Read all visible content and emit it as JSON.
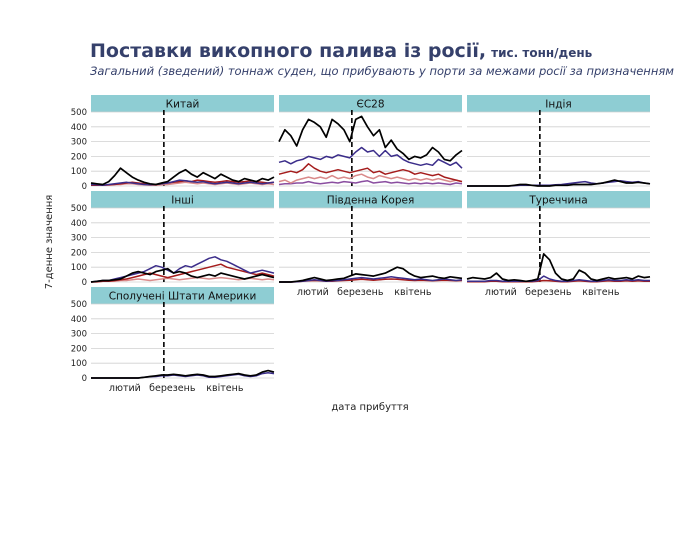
{
  "header": {
    "title": "Поставки викопного палива із росії,",
    "unit": "тис. тонн/день",
    "subtitle": "Загальний (зведений) тоннаж суден, що прибувають у порти за межами росії за призначенням"
  },
  "axes": {
    "ylabel": "7-денне значення",
    "xlabel": "дата прибуття"
  },
  "colors": {
    "strip_bg": "#8ecdd3",
    "grid": "#d0d0d0",
    "dash": "#000000",
    "series": [
      "#000000",
      "#3b2d8a",
      "#a51c1c",
      "#d98a8a",
      "#8a4ea0"
    ]
  },
  "chart_data": {
    "type": "line",
    "x_ticks": [
      "лютий",
      "березень",
      "квітень"
    ],
    "x_tick_dates": [
      "2022-02-01",
      "2022-03-01",
      "2022-04-01"
    ],
    "x_range": [
      "2022-01-12",
      "2022-04-30"
    ],
    "event_line_date": "2022-02-24",
    "ylim": [
      0,
      500
    ],
    "y_ticks": [
      0,
      100,
      200,
      300,
      400,
      500
    ],
    "panels": [
      {
        "name": "Китай",
        "series": [
          {
            "values": [
              20,
              15,
              10,
              30,
              70,
              120,
              90,
              60,
              40,
              25,
              15,
              10,
              20,
              30,
              60,
              90,
              110,
              80,
              60,
              90,
              70,
              50,
              80,
              60,
              40,
              30,
              50,
              40,
              30,
              50,
              40,
              60
            ]
          },
          {
            "values": [
              10,
              8,
              5,
              10,
              15,
              20,
              25,
              20,
              15,
              10,
              8,
              10,
              15,
              20,
              30,
              40,
              35,
              30,
              25,
              30,
              20,
              15,
              20,
              25,
              20,
              15,
              20,
              25,
              20,
              15,
              20,
              25
            ]
          },
          {
            "values": [
              5,
              5,
              5,
              8,
              10,
              15,
              20,
              25,
              20,
              15,
              10,
              10,
              15,
              20,
              25,
              30,
              35,
              30,
              40,
              35,
              30,
              25,
              30,
              35,
              30,
              25,
              30,
              35,
              30,
              25,
              20,
              25
            ]
          },
          {
            "values": [
              5,
              5,
              5,
              5,
              10,
              10,
              15,
              15,
              10,
              8,
              5,
              5,
              8,
              10,
              15,
              20,
              25,
              20,
              15,
              20,
              15,
              10,
              15,
              20,
              15,
              10,
              15,
              20,
              15,
              10,
              15,
              10
            ]
          }
        ]
      },
      {
        "name": "ЄС28",
        "series": [
          {
            "values": [
              300,
              380,
              340,
              270,
              380,
              450,
              430,
              400,
              330,
              450,
              420,
              380,
              300,
              450,
              470,
              400,
              340,
              380,
              260,
              310,
              250,
              220,
              180,
              200,
              190,
              210,
              260,
              230,
              180,
              170,
              210,
              240
            ]
          },
          {
            "values": [
              160,
              170,
              150,
              170,
              180,
              200,
              190,
              180,
              200,
              190,
              210,
              200,
              190,
              230,
              260,
              230,
              240,
              200,
              240,
              200,
              210,
              180,
              160,
              150,
              140,
              150,
              140,
              180,
              160,
              140,
              160,
              120
            ]
          },
          {
            "values": [
              80,
              90,
              100,
              90,
              110,
              150,
              120,
              100,
              90,
              100,
              110,
              100,
              90,
              100,
              110,
              120,
              90,
              100,
              80,
              90,
              100,
              110,
              100,
              80,
              90,
              80,
              70,
              80,
              60,
              50,
              40,
              30
            ]
          },
          {
            "values": [
              30,
              40,
              20,
              40,
              50,
              60,
              50,
              60,
              50,
              70,
              50,
              60,
              50,
              70,
              80,
              60,
              50,
              70,
              60,
              50,
              60,
              50,
              40,
              50,
              40,
              50,
              40,
              50,
              40,
              30,
              40,
              30
            ]
          },
          {
            "values": [
              10,
              15,
              15,
              20,
              20,
              30,
              20,
              15,
              20,
              25,
              20,
              30,
              25,
              20,
              30,
              35,
              20,
              25,
              30,
              20,
              25,
              20,
              15,
              20,
              15,
              20,
              15,
              20,
              15,
              10,
              20,
              15
            ]
          }
        ]
      },
      {
        "name": "Індія",
        "series": [
          {
            "values": [
              0,
              0,
              0,
              0,
              0,
              0,
              0,
              0,
              5,
              10,
              10,
              5,
              0,
              0,
              0,
              5,
              5,
              5,
              10,
              10,
              10,
              10,
              15,
              20,
              30,
              40,
              30,
              20,
              20,
              25,
              20,
              15
            ]
          },
          {
            "values": [
              0,
              0,
              0,
              0,
              0,
              0,
              0,
              0,
              2,
              5,
              5,
              5,
              5,
              5,
              5,
              8,
              10,
              15,
              20,
              25,
              30,
              20,
              15,
              20,
              25,
              30,
              35,
              30,
              25,
              30,
              20,
              15
            ]
          }
        ]
      },
      {
        "name": "Інші",
        "series": [
          {
            "values": [
              0,
              5,
              10,
              10,
              15,
              20,
              40,
              60,
              70,
              60,
              50,
              70,
              80,
              90,
              60,
              70,
              60,
              40,
              30,
              40,
              50,
              40,
              60,
              50,
              40,
              30,
              20,
              30,
              40,
              50,
              40,
              30
            ]
          },
          {
            "values": [
              0,
              5,
              10,
              10,
              20,
              30,
              40,
              50,
              60,
              70,
              90,
              110,
              100,
              80,
              60,
              90,
              110,
              100,
              120,
              140,
              160,
              170,
              150,
              140,
              120,
              100,
              80,
              60,
              70,
              80,
              70,
              60
            ]
          },
          {
            "values": [
              0,
              2,
              5,
              5,
              10,
              15,
              20,
              30,
              40,
              50,
              60,
              50,
              40,
              30,
              40,
              50,
              60,
              70,
              80,
              90,
              100,
              110,
              120,
              100,
              90,
              80,
              70,
              60,
              50,
              60,
              50,
              40
            ]
          },
          {
            "values": [
              0,
              0,
              5,
              5,
              5,
              10,
              10,
              15,
              20,
              15,
              10,
              15,
              20,
              25,
              20,
              15,
              20,
              25,
              30,
              25,
              20,
              25,
              30,
              25,
              20,
              15,
              20,
              25,
              20,
              15,
              20,
              15
            ]
          }
        ]
      },
      {
        "name": "Південна Корея",
        "series": [
          {
            "values": [
              0,
              0,
              0,
              5,
              10,
              20,
              30,
              20,
              10,
              15,
              20,
              25,
              40,
              55,
              50,
              45,
              40,
              50,
              60,
              80,
              100,
              90,
              60,
              40,
              30,
              35,
              40,
              30,
              25,
              35,
              30,
              25
            ]
          },
          {
            "values": [
              0,
              0,
              0,
              2,
              5,
              10,
              15,
              10,
              5,
              8,
              10,
              15,
              20,
              25,
              30,
              25,
              20,
              25,
              30,
              35,
              30,
              25,
              20,
              15,
              20,
              15,
              10,
              15,
              20,
              15,
              10,
              15
            ]
          },
          {
            "values": [
              0,
              0,
              0,
              2,
              5,
              8,
              10,
              8,
              5,
              5,
              8,
              10,
              12,
              15,
              18,
              15,
              12,
              15,
              18,
              20,
              18,
              15,
              12,
              10,
              12,
              10,
              8,
              10,
              12,
              10,
              8,
              10
            ]
          }
        ]
      },
      {
        "name": "Туреччина",
        "series": [
          {
            "values": [
              20,
              30,
              25,
              20,
              30,
              60,
              20,
              10,
              15,
              10,
              5,
              10,
              20,
              190,
              150,
              60,
              20,
              10,
              20,
              80,
              60,
              20,
              10,
              20,
              30,
              20,
              25,
              30,
              20,
              40,
              30,
              35
            ]
          },
          {
            "values": [
              5,
              5,
              5,
              5,
              10,
              10,
              5,
              5,
              5,
              5,
              5,
              5,
              10,
              40,
              20,
              10,
              5,
              5,
              10,
              15,
              10,
              5,
              5,
              10,
              15,
              10,
              10,
              15,
              10,
              15,
              10,
              10
            ]
          },
          {
            "values": [
              2,
              2,
              2,
              2,
              5,
              5,
              2,
              2,
              2,
              2,
              2,
              2,
              5,
              10,
              8,
              5,
              2,
              2,
              5,
              8,
              5,
              2,
              2,
              5,
              8,
              5,
              5,
              8,
              5,
              8,
              5,
              5
            ]
          }
        ]
      },
      {
        "name": "Сполучені Штати Америки",
        "series": [
          {
            "values": [
              0,
              0,
              0,
              0,
              0,
              0,
              0,
              0,
              0,
              5,
              10,
              15,
              20,
              20,
              25,
              20,
              15,
              20,
              25,
              20,
              10,
              10,
              15,
              20,
              25,
              30,
              20,
              15,
              20,
              40,
              50,
              40
            ]
          },
          {
            "values": [
              0,
              0,
              0,
              0,
              0,
              0,
              0,
              0,
              0,
              5,
              8,
              10,
              15,
              15,
              20,
              15,
              10,
              15,
              20,
              15,
              5,
              5,
              10,
              15,
              20,
              25,
              15,
              10,
              15,
              30,
              35,
              30
            ]
          }
        ]
      }
    ]
  }
}
